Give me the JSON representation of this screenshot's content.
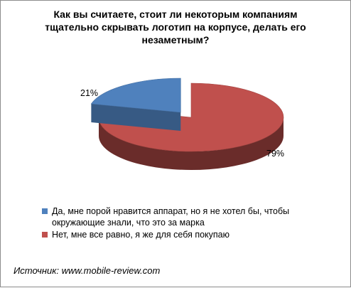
{
  "chart_data": {
    "type": "pie",
    "title": "Как вы считаете, стоит ли некоторым компаниям тщательно скрывать логотип на корпусе, делать его незаметным?",
    "categories": [
      "Да, мне порой нравится аппарат, но я не хотел бы, чтобы окружающие знали, что это за марка",
      "Нет, мне все равно, я же для себя покупаю"
    ],
    "values": [
      21,
      79
    ],
    "value_labels": [
      "21%",
      "79%"
    ],
    "colors": [
      "#4f81bd",
      "#c0504d"
    ],
    "exploded": [
      true,
      false
    ],
    "style": "3d",
    "legend_position": "bottom"
  },
  "source": "Источник: www.mobile-review.com"
}
